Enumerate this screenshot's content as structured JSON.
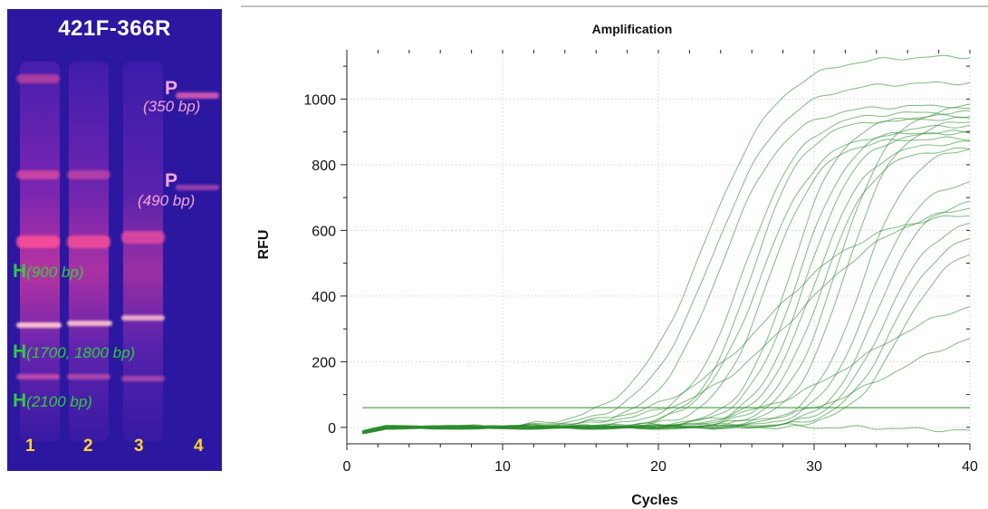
{
  "gel": {
    "title": "421F-366R",
    "markers": [
      {
        "letter": "P",
        "size": "(350 bp)"
      },
      {
        "letter": "P",
        "size": "(490 bp)"
      },
      {
        "letter": "H",
        "size": "(900 bp)"
      },
      {
        "letter": "H",
        "size": "(1700, 1800 bp)"
      },
      {
        "letter": "H",
        "size": "(2100 bp)"
      }
    ],
    "lanes": [
      "1",
      "2",
      "3",
      "4"
    ],
    "colors": {
      "background": "#2c18a0",
      "p_label": "#f4a6d8",
      "h_label": "#2ecc40",
      "lane_number": "#ffd23a"
    }
  },
  "chart_data": {
    "type": "line",
    "title": "Amplification",
    "xlabel": "Cycles",
    "ylabel": "RFU",
    "xlim": [
      0,
      40
    ],
    "ylim": [
      -50,
      1150
    ],
    "xticks": [
      0,
      10,
      20,
      30,
      40
    ],
    "yticks": [
      0,
      200,
      400,
      600,
      800,
      1000
    ],
    "grid": true,
    "line_color": "#2a8a2a",
    "threshold": 60,
    "cycle_range": [
      1,
      40
    ],
    "series": [
      {
        "ct": 23.0,
        "plateau": 1130,
        "k": 0.42
      },
      {
        "ct": 23.5,
        "plateau": 1050,
        "k": 0.45
      },
      {
        "ct": 24.0,
        "plateau": 980,
        "k": 0.5
      },
      {
        "ct": 25.5,
        "plateau": 960,
        "k": 0.55
      },
      {
        "ct": 26.0,
        "plateau": 940,
        "k": 0.6
      },
      {
        "ct": 26.5,
        "plateau": 900,
        "k": 0.55
      },
      {
        "ct": 27.0,
        "plateau": 880,
        "k": 0.6
      },
      {
        "ct": 28.5,
        "plateau": 950,
        "k": 0.62
      },
      {
        "ct": 29.0,
        "plateau": 920,
        "k": 0.6
      },
      {
        "ct": 29.5,
        "plateau": 900,
        "k": 0.62
      },
      {
        "ct": 30.0,
        "plateau": 870,
        "k": 0.6
      },
      {
        "ct": 30.5,
        "plateau": 850,
        "k": 0.62
      },
      {
        "ct": 31.5,
        "plateau": 980,
        "k": 0.6
      },
      {
        "ct": 32.0,
        "plateau": 940,
        "k": 0.62
      },
      {
        "ct": 33.0,
        "plateau": 860,
        "k": 0.62
      },
      {
        "ct": 33.5,
        "plateau": 760,
        "k": 0.62
      },
      {
        "ct": 34.0,
        "plateau": 700,
        "k": 0.65
      },
      {
        "ct": 34.5,
        "plateau": 640,
        "k": 0.62
      },
      {
        "ct": 35.0,
        "plateau": 600,
        "k": 0.62
      },
      {
        "ct": 35.5,
        "plateau": 560,
        "k": 0.62
      },
      {
        "ct": 27.0,
        "plateau": 660,
        "k": 0.3
      },
      {
        "ct": 29.0,
        "plateau": 700,
        "k": 0.28
      },
      {
        "ct": 33.0,
        "plateau": 420,
        "k": 0.28
      },
      {
        "ct": 35.0,
        "plateau": 330,
        "k": 0.3
      },
      {
        "ct": 60.0,
        "plateau": 0,
        "k": 0.3
      }
    ]
  }
}
